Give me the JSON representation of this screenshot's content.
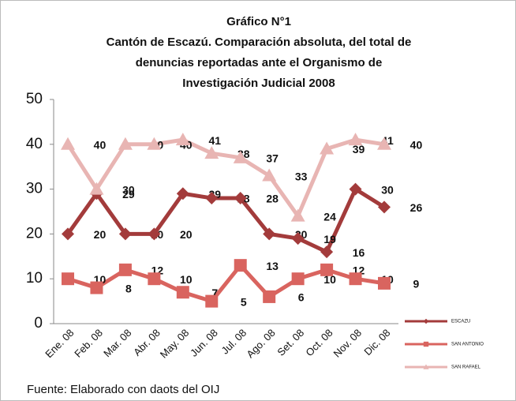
{
  "chart_data": {
    "type": "line",
    "title": [
      "Gráfico N°1",
      "Cantón de Escazú. Comparación absoluta, del total de",
      "denuncias reportadas ante el Organismo de",
      "Investigación Judicial  2008"
    ],
    "categories": [
      "Ene. 08",
      "Feb. 08",
      "Mar. 08",
      "Abr. 08",
      "May. 08",
      "Jun. 08",
      "Jul. 08",
      "Ago. 08",
      "Set. 08",
      "Oct. 08",
      "Nov. 08",
      "Dic. 08"
    ],
    "series": [
      {
        "name": "ESCAZU",
        "color": "#a33b3b",
        "marker": "diamond",
        "values": [
          20,
          29,
          20,
          20,
          29,
          28,
          28,
          20,
          19,
          16,
          30,
          26
        ]
      },
      {
        "name": "SAN ANTONIO",
        "color": "#d9645f",
        "marker": "square",
        "values": [
          10,
          8,
          12,
          10,
          7,
          5,
          13,
          6,
          10,
          12,
          10,
          9
        ]
      },
      {
        "name": "SAN RAFAEL",
        "color": "#e8b5b3",
        "marker": "triangle",
        "values": [
          40,
          30,
          40,
          40,
          41,
          38,
          37,
          33,
          24,
          39,
          41,
          40
        ]
      }
    ],
    "ylim": [
      0,
      50
    ],
    "yticks": [
      0,
      10,
      20,
      30,
      40,
      50
    ],
    "grid": false,
    "legend": "right",
    "source": "Fuente: Elaborado con daots del OIJ"
  }
}
